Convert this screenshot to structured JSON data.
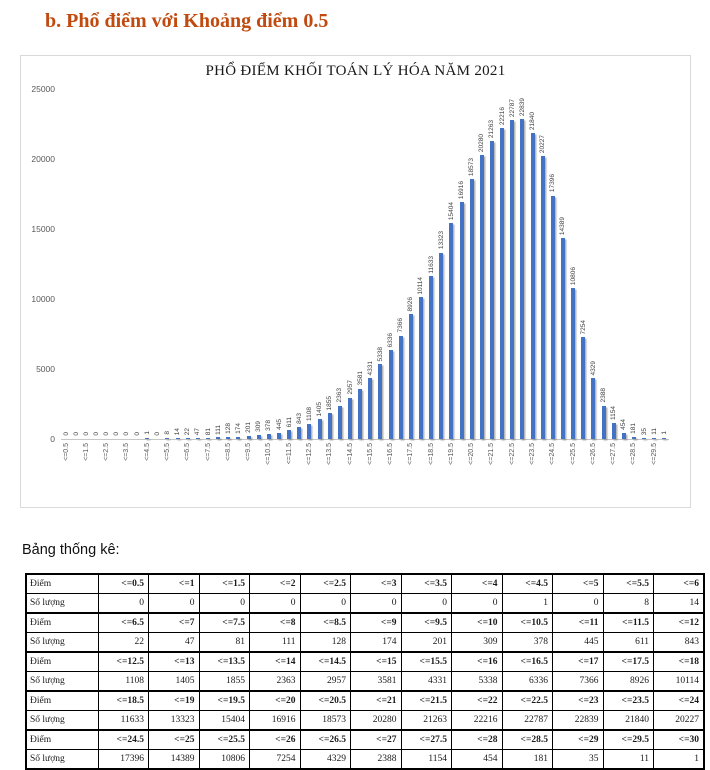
{
  "page": {
    "heading": "b. Phổ điểm với Khoảng điểm 0.5",
    "heading_color": "#C04A0F",
    "table_caption": "Bảng thống kê:"
  },
  "chart_data": {
    "type": "bar",
    "title": "PHỔ ĐIỂM KHỐI TOÁN LÝ HÓA NĂM 2021",
    "categories": [
      "<=0.5",
      "<=1",
      "<=1.5",
      "<=2",
      "<=2.5",
      "<=3",
      "<=3.5",
      "<=4",
      "<=4.5",
      "<=5",
      "<=5.5",
      "<=6",
      "<=6.5",
      "<=7",
      "<=7.5",
      "<=8",
      "<=8.5",
      "<=9",
      "<=9.5",
      "<=10",
      "<=10.5",
      "<=11",
      "<=11.5",
      "<=12",
      "<=12.5",
      "<=13",
      "<=13.5",
      "<=14",
      "<=14.5",
      "<=15",
      "<=15.5",
      "<=16",
      "<=16.5",
      "<=17",
      "<=17.5",
      "<=18",
      "<=18.5",
      "<=19",
      "<=19.5",
      "<=20",
      "<=20.5",
      "<=21",
      "<=21.5",
      "<=22",
      "<=22.5",
      "<=23",
      "<=23.5",
      "<=24",
      "<=24.5",
      "<=25",
      "<=25.5",
      "<=26",
      "<=26.5",
      "<=27",
      "<=27.5",
      "<=28",
      "<=28.5",
      "<=29",
      "<=29.5",
      "<=30"
    ],
    "values": [
      0,
      0,
      0,
      0,
      0,
      0,
      0,
      0,
      1,
      0,
      8,
      14,
      22,
      47,
      81,
      111,
      128,
      174,
      201,
      309,
      378,
      445,
      611,
      843,
      1108,
      1405,
      1855,
      2363,
      2957,
      3581,
      4331,
      5338,
      6336,
      7366,
      8926,
      10114,
      11633,
      13323,
      15404,
      16916,
      18573,
      20280,
      21263,
      22216,
      22787,
      22839,
      21840,
      20227,
      17396,
      14389,
      10806,
      7254,
      4329,
      2388,
      1154,
      454,
      181,
      35,
      11,
      1
    ],
    "xlabel": "",
    "ylabel": "",
    "ylim": [
      0,
      25000
    ],
    "y_ticks": [
      0,
      5000,
      10000,
      15000,
      20000,
      25000
    ],
    "x_tick_shown_every": 2,
    "bar_color": "#4472C4",
    "data_label_color": "#3f3f3f",
    "axis_label_color": "#595959",
    "grid": false,
    "legend": "none",
    "data_labels": true
  },
  "stats_table": {
    "rows": [
      {
        "header": "Điểm",
        "bold": true,
        "cells": [
          "<=0.5",
          "<=1",
          "<=1.5",
          "<=2",
          "<=2.5",
          "<=3",
          "<=3.5",
          "<=4",
          "<=4.5",
          "<=5",
          "<=5.5",
          "<=6"
        ]
      },
      {
        "header": "Số lượng",
        "bold": false,
        "cells": [
          "0",
          "0",
          "0",
          "0",
          "0",
          "0",
          "0",
          "0",
          "1",
          "0",
          "8",
          "14"
        ]
      },
      {
        "header": "Điểm",
        "bold": true,
        "cells": [
          "<=6.5",
          "<=7",
          "<=7.5",
          "<=8",
          "<=8.5",
          "<=9",
          "<=9.5",
          "<=10",
          "<=10.5",
          "<=11",
          "<=11.5",
          "<=12"
        ]
      },
      {
        "header": "Số lượng",
        "bold": false,
        "cells": [
          "22",
          "47",
          "81",
          "111",
          "128",
          "174",
          "201",
          "309",
          "378",
          "445",
          "611",
          "843"
        ]
      },
      {
        "header": "Điểm",
        "bold": true,
        "cells": [
          "<=12.5",
          "<=13",
          "<=13.5",
          "<=14",
          "<=14.5",
          "<=15",
          "<=15.5",
          "<=16",
          "<=16.5",
          "<=17",
          "<=17.5",
          "<=18"
        ]
      },
      {
        "header": "Số lượng",
        "bold": false,
        "cells": [
          "1108",
          "1405",
          "1855",
          "2363",
          "2957",
          "3581",
          "4331",
          "5338",
          "6336",
          "7366",
          "8926",
          "10114"
        ]
      },
      {
        "header": "Điểm",
        "bold": true,
        "cells": [
          "<=18.5",
          "<=19",
          "<=19.5",
          "<=20",
          "<=20.5",
          "<=21",
          "<=21.5",
          "<=22",
          "<=22.5",
          "<=23",
          "<=23.5",
          "<=24"
        ]
      },
      {
        "header": "Số lượng",
        "bold": false,
        "cells": [
          "11633",
          "13323",
          "15404",
          "16916",
          "18573",
          "20280",
          "21263",
          "22216",
          "22787",
          "22839",
          "21840",
          "20227"
        ]
      },
      {
        "header": "Điểm",
        "bold": true,
        "cells": [
          "<=24.5",
          "<=25",
          "<=25.5",
          "<=26",
          "<=26.5",
          "<=27",
          "<=27.5",
          "<=28",
          "<=28.5",
          "<=29",
          "<=29.5",
          "<=30"
        ]
      },
      {
        "header": "Số lượng",
        "bold": false,
        "cells": [
          "17396",
          "14389",
          "10806",
          "7254",
          "4329",
          "2388",
          "1154",
          "454",
          "181",
          "35",
          "11",
          "1"
        ]
      }
    ]
  }
}
